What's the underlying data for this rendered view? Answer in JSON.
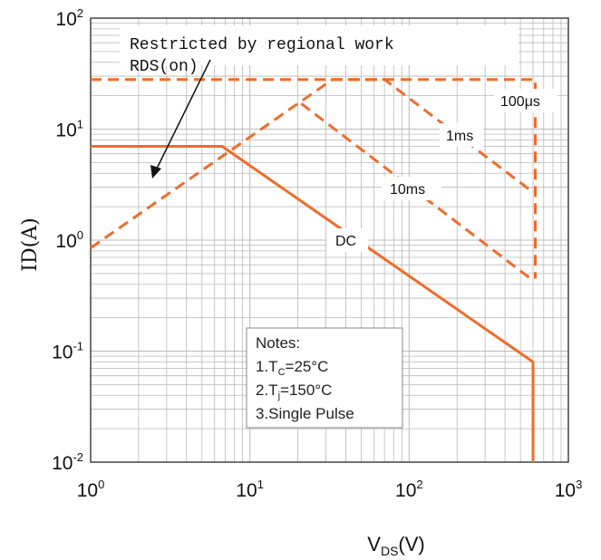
{
  "chart_data": {
    "type": "line",
    "scale": "log-log",
    "grid": true,
    "xlabel": {
      "main": "V",
      "sub": "DS",
      "tail": "(V)"
    },
    "ylabel": "ID(A)",
    "xlim": [
      1,
      1000
    ],
    "ylim": [
      0.01,
      100
    ],
    "x_ticks": [
      {
        "base": "10",
        "exp": "0"
      },
      {
        "base": "10",
        "exp": "1"
      },
      {
        "base": "10",
        "exp": "2"
      },
      {
        "base": "10",
        "exp": "3"
      }
    ],
    "y_ticks": [
      {
        "base": "10",
        "exp": "2"
      },
      {
        "base": "10",
        "exp": "1"
      },
      {
        "base": "10",
        "exp": "0"
      },
      {
        "base": "10",
        "exp": "-1"
      },
      {
        "base": "10",
        "exp": "-2"
      }
    ],
    "series": [
      {
        "name": "100μs",
        "style": "dashed",
        "points": [
          [
            1,
            28
          ],
          [
            620,
            28
          ],
          [
            620,
            0.45
          ]
        ]
      },
      {
        "name": "1ms",
        "style": "dashed",
        "points": [
          [
            1,
            0.85
          ],
          [
            33,
            28
          ],
          [
            70,
            28
          ],
          [
            580,
            2.8
          ]
        ]
      },
      {
        "name": "10ms",
        "style": "dashed",
        "points": [
          [
            21,
            17
          ],
          [
            580,
            0.45
          ]
        ]
      },
      {
        "name": "DC",
        "style": "solid",
        "points": [
          [
            1,
            7
          ],
          [
            6.7,
            7
          ],
          [
            600,
            0.08
          ],
          [
            600,
            0.01
          ]
        ]
      }
    ],
    "curve_labels": {
      "us100": "100μs",
      "ms1": "1ms",
      "ms10": "10ms",
      "dc": "DC"
    },
    "annotation": {
      "line1": "Restricted by regional work",
      "line2": "RDS(on)"
    },
    "notes": {
      "title": "Notes:",
      "line1": {
        "pre": "1.T",
        "sub": "C",
        "post": "=25°C"
      },
      "line2": {
        "pre": "2.T",
        "sub": "j",
        "post": "=150°C"
      },
      "line3": "3.Single Pulse"
    },
    "colors": {
      "curve": "#ef6c2a",
      "grid": "#b9b9b9",
      "axis": "#444444"
    }
  }
}
